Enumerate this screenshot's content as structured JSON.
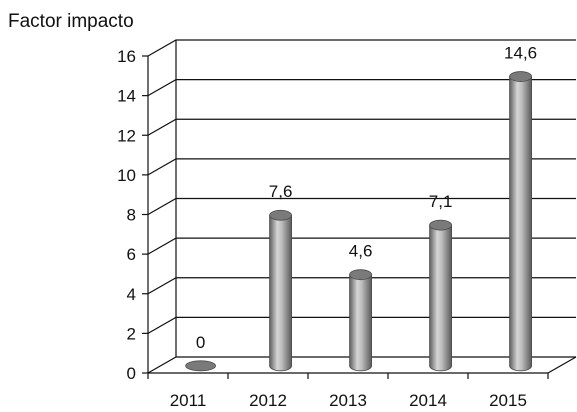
{
  "chart_data": {
    "type": "bar",
    "ylabel": "Factor impacto",
    "categories": [
      "2011",
      "2012",
      "2013",
      "2014",
      "2015"
    ],
    "values": [
      0,
      7.6,
      4.6,
      7.1,
      14.6
    ],
    "data_labels": [
      "0",
      "7,6",
      "4,6",
      "7,1",
      "14,6"
    ],
    "yticks": [
      "0",
      "2",
      "4",
      "6",
      "8",
      "10",
      "12",
      "14",
      "16"
    ],
    "ylim": [
      0,
      16
    ],
    "grid": true,
    "style": "3d-cylinder",
    "colors": {
      "bar_dark": "#6a6a6a",
      "bar_light": "#d4d4d4",
      "cap": "#7a7a7a",
      "grid": "#111111"
    }
  }
}
